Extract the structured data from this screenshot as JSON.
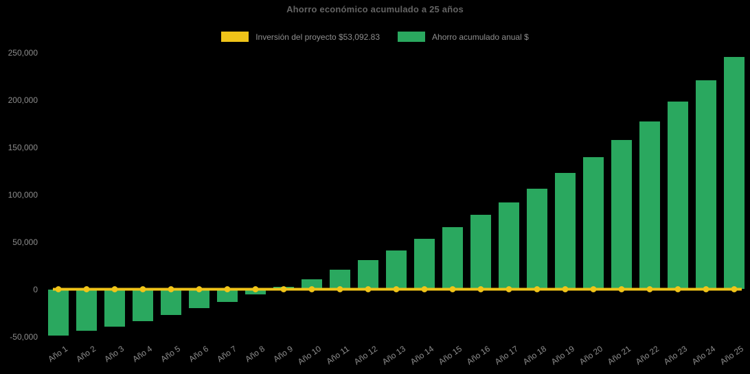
{
  "title": "Ahorro económico acumulado a 25 años",
  "legend": {
    "investment_label": "Inversión del proyecto $53,092.83",
    "savings_label": "Ahorro acumulado anual $",
    "investment_color": "#F0C419",
    "savings_color": "#2AA85F"
  },
  "background_color": "#000000",
  "chart_data": {
    "type": "bar",
    "title": "Ahorro económico acumulado a 25 años",
    "categories": [
      "Año 1",
      "Año 2",
      "Año 3",
      "Año 4",
      "Año 5",
      "Año 6",
      "Año 7",
      "Año 8",
      "Año 9",
      "Año 10",
      "Año 11",
      "Año 12",
      "Año 13",
      "Año 14",
      "Año 15",
      "Año 16",
      "Año 17",
      "Año 18",
      "Año 19",
      "Año 20",
      "Año 21",
      "Año 22",
      "Año 23",
      "Año 24",
      "Año 25"
    ],
    "series": [
      {
        "name": "Ahorro acumulado anual $",
        "type": "bar",
        "color": "#2AA85F",
        "values": [
          -49000,
          -44000,
          -39300,
          -33400,
          -27300,
          -20100,
          -13300,
          -5400,
          2500,
          10500,
          20500,
          30700,
          40800,
          52900,
          65300,
          78500,
          91800,
          106100,
          122500,
          139400,
          157600,
          177500,
          198300,
          220600,
          245200
        ]
      },
      {
        "name": "Inversión del proyecto $53,092.83",
        "type": "line",
        "color": "#F0C419",
        "values": [
          0,
          0,
          0,
          0,
          0,
          0,
          0,
          0,
          0,
          0,
          0,
          0,
          0,
          0,
          0,
          0,
          0,
          0,
          0,
          0,
          0,
          0,
          0,
          0,
          0
        ]
      }
    ],
    "ylim": [
      -50000,
      250000
    ],
    "yticks": [
      -50000,
      0,
      50000,
      100000,
      150000,
      200000,
      250000
    ],
    "ytick_labels": [
      "-50,000",
      "0",
      "50,000",
      "100,000",
      "150,000",
      "200,000",
      "250,000"
    ],
    "grid": false,
    "legend_position": "top",
    "background": "#000000"
  }
}
